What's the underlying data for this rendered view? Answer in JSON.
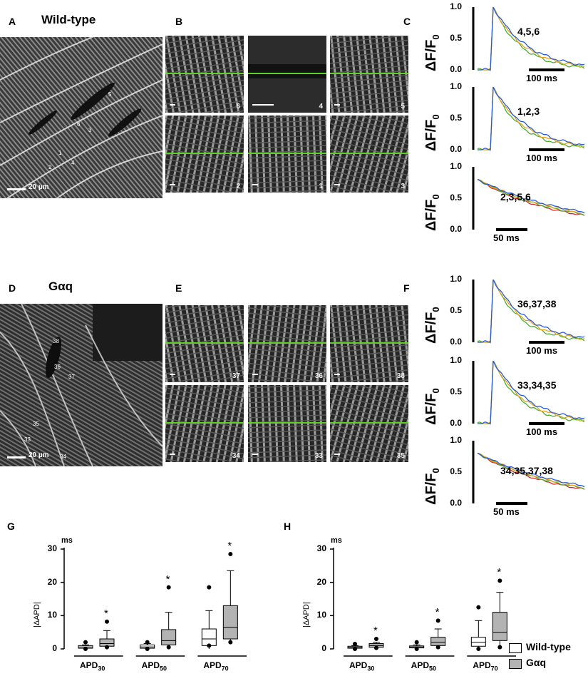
{
  "panels": {
    "A": {
      "letter": "A",
      "title": "Wild-type",
      "scale": "20 µm",
      "cells": [
        "1",
        "2",
        "3",
        "4",
        "5",
        "6"
      ]
    },
    "B": {
      "letter": "B",
      "tiles": [
        "6",
        "4",
        "5",
        "2",
        "1",
        "3"
      ]
    },
    "C": {
      "letter": "C",
      "ylabel": "ΔF/F",
      "ylabel_sub": "0",
      "traces": [
        {
          "label": "4,5,6",
          "ticks": [
            "1.0",
            "0.5",
            "0.0"
          ],
          "bar": "100 ms"
        },
        {
          "label": "1,2,3",
          "ticks": [
            "1.0",
            "0.5",
            "0.0"
          ],
          "bar": "100 ms"
        },
        {
          "label": "2,3,5,6",
          "ticks": [
            "1.0",
            "0.5",
            "0.0"
          ],
          "bar": "50 ms"
        }
      ]
    },
    "D": {
      "letter": "D",
      "title": "Gαq",
      "scale": "20 µm",
      "cells": [
        "38",
        "36",
        "37",
        "35",
        "33",
        "34"
      ]
    },
    "E": {
      "letter": "E",
      "tiles": [
        "37",
        "36",
        "38",
        "34",
        "33",
        "35"
      ]
    },
    "F": {
      "letter": "F",
      "ylabel": "ΔF/F",
      "ylabel_sub": "0",
      "traces": [
        {
          "label": "36,37,38",
          "ticks": [
            "1.0",
            "0.5",
            "0.0"
          ],
          "bar": "100 ms"
        },
        {
          "label": "33,34,35",
          "ticks": [
            "1.0",
            "0.5",
            "0.0"
          ],
          "bar": "100 ms"
        },
        {
          "label": "34,35,37,38",
          "ticks": [
            "1.0",
            "0.5",
            "0.0"
          ],
          "bar": "50 ms"
        }
      ]
    },
    "G": {
      "letter": "G",
      "unit": "ms",
      "ylabel": "|ΔAPD|",
      "yticks": [
        "30",
        "20",
        "10",
        "0"
      ],
      "groups": [
        "APD",
        "APD",
        "APD"
      ],
      "group_subs": [
        "30",
        "50",
        "70"
      ]
    },
    "H": {
      "letter": "H",
      "unit": "ms",
      "ylabel": "|ΔAPD|",
      "yticks": [
        "30",
        "20",
        "10",
        "0"
      ],
      "groups": [
        "APD",
        "APD",
        "APD"
      ],
      "group_subs": [
        "30",
        "50",
        "70"
      ]
    }
  },
  "significance_mark": "*",
  "legend": [
    {
      "label": "Wild-type",
      "color": "#ffffff"
    },
    {
      "label": "Gαq",
      "color": "#b3b3b3"
    }
  ],
  "colors": {
    "trace_blue": "#2a5bd7",
    "trace_green": "#4caf2a",
    "trace_red": "#d62a2a",
    "trace_orange": "#e8a21a",
    "scan_line": "#5fcf2a"
  },
  "chart_data": [
    {
      "type": "box",
      "title": "",
      "ylabel": "|ΔAPD|",
      "unit": "ms",
      "ylim": [
        0,
        30
      ],
      "categories": [
        "APD30",
        "APD50",
        "APD70"
      ],
      "series": [
        {
          "name": "Wild-type",
          "boxes": [
            {
              "min": 0,
              "q1": 0.2,
              "median": 0.6,
              "q3": 1.0,
              "max": 1.2,
              "outliers": [
                0,
                2
              ]
            },
            {
              "min": 0,
              "q1": 0.2,
              "median": 0.6,
              "q3": 1.2,
              "max": 1.6,
              "outliers": [
                0,
                2
              ]
            },
            {
              "min": 0,
              "q1": 1.0,
              "median": 3.0,
              "q3": 6.0,
              "max": 11.5,
              "outliers": [
                1,
                18.5
              ]
            }
          ]
        },
        {
          "name": "Gαq",
          "boxes": [
            {
              "min": 0.5,
              "q1": 0.8,
              "median": 1.6,
              "q3": 3.0,
              "max": 5.5,
              "outliers": [
                0.5,
                8.2
              ]
            },
            {
              "min": 0.5,
              "q1": 1.2,
              "median": 2.5,
              "q3": 5.8,
              "max": 11,
              "outliers": [
                0.5,
                18.5
              ]
            },
            {
              "min": 1.5,
              "q1": 3.0,
              "median": 6.5,
              "q3": 13,
              "max": 23.5,
              "outliers": [
                2,
                28.5
              ]
            }
          ]
        }
      ],
      "significant": [
        false,
        true,
        false,
        true,
        false,
        true
      ]
    },
    {
      "type": "box",
      "title": "",
      "ylabel": "|ΔAPD|",
      "unit": "ms",
      "ylim": [
        0,
        30
      ],
      "categories": [
        "APD30",
        "APD50",
        "APD70"
      ],
      "series": [
        {
          "name": "Wild-type",
          "boxes": [
            {
              "min": 0,
              "q1": 0.2,
              "median": 0.5,
              "q3": 0.8,
              "max": 1.0,
              "outliers": [
                0,
                1.5
              ]
            },
            {
              "min": 0,
              "q1": 0.3,
              "median": 0.6,
              "q3": 0.9,
              "max": 1.2,
              "outliers": [
                0,
                2
              ]
            },
            {
              "min": 0,
              "q1": 0.8,
              "median": 2.0,
              "q3": 3.5,
              "max": 8.5,
              "outliers": [
                0,
                12.5
              ]
            }
          ]
        },
        {
          "name": "Gαq",
          "boxes": [
            {
              "min": 0.3,
              "q1": 0.5,
              "median": 1.0,
              "q3": 1.6,
              "max": 2.0,
              "outliers": [
                0.3,
                3
              ]
            },
            {
              "min": 0.5,
              "q1": 1.0,
              "median": 2.0,
              "q3": 3.5,
              "max": 6,
              "outliers": [
                0.5,
                8.5
              ]
            },
            {
              "min": 1.0,
              "q1": 2.5,
              "median": 5.0,
              "q3": 11,
              "max": 17,
              "outliers": [
                0.5,
                20.5
              ]
            }
          ]
        }
      ],
      "significant": [
        false,
        true,
        false,
        true,
        false,
        true
      ]
    }
  ]
}
